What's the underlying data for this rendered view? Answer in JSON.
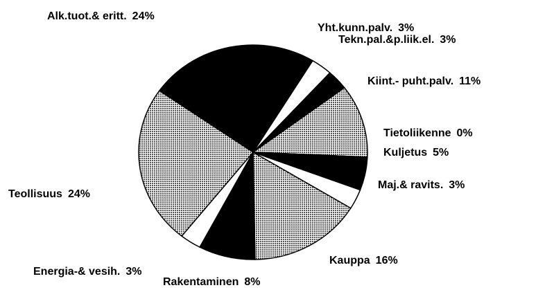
{
  "chart_data": {
    "type": "pie",
    "categories": [
      "Alk.tuot.& eritt.",
      "Yht.kunn.palv.",
      "Tekn.pal.&p.liik.el.",
      "Kiint.- puht.palv.",
      "Tietoliikenne",
      "Kuljetus",
      "Maj.& ravits.",
      "Kauppa",
      "Rakentaminen",
      "Energia-& vesih.",
      "Teollisuus"
    ],
    "values": [
      24,
      3,
      3,
      11,
      0,
      5,
      3,
      16,
      8,
      3,
      24
    ],
    "value_labels": [
      "24%",
      "3%",
      "3%",
      "11%",
      "0%",
      "5%",
      "3%",
      "16%",
      "8%",
      "3%",
      "24%"
    ],
    "colors": [
      "#000000",
      "#ffffff",
      "#000000",
      "#a8a8a8",
      "#000000",
      "#000000",
      "#ffffff",
      "#a8a8a8",
      "#000000",
      "#ffffff",
      "#a8a8a8"
    ]
  }
}
